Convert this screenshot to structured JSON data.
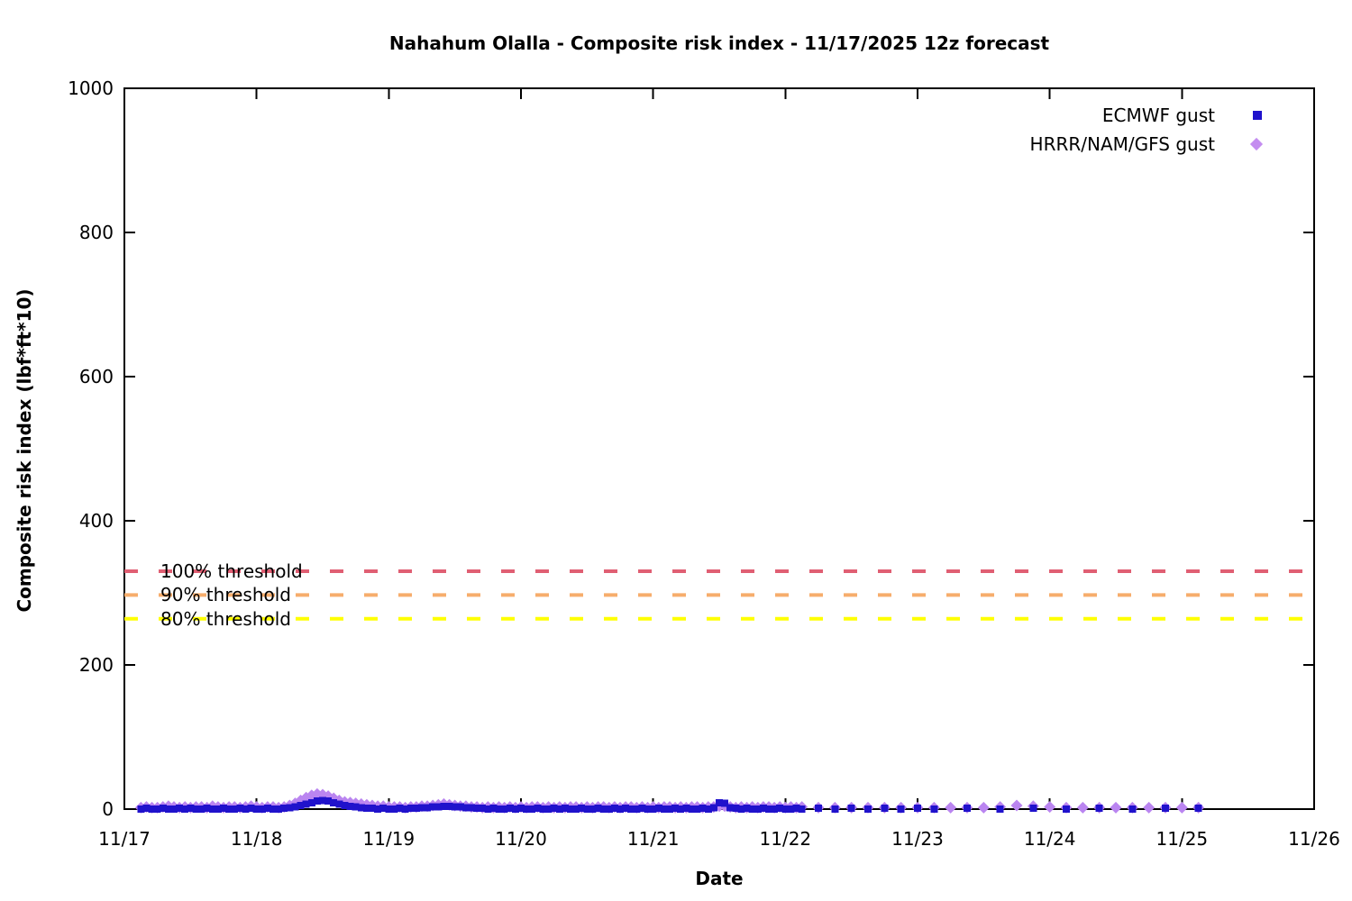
{
  "title": "Nahahum Olalla - Composite risk index - 11/17/2025 12z forecast",
  "legend": {
    "entries": [
      {
        "label": "ECMWF gust",
        "marker": "square",
        "color": "#2012cc"
      },
      {
        "label": "HRRR/NAM/GFS gust",
        "marker": "diamond",
        "color": "#c48df0"
      }
    ]
  },
  "chart_data": {
    "type": "scatter",
    "title": "Nahahum Olalla - Composite risk index - 11/17/2025 12z forecast",
    "xlabel": "Date",
    "ylabel": "Composite risk index (lbf*ft*10)",
    "x_tick_labels": [
      "11/17",
      "11/18",
      "11/19",
      "11/20",
      "11/21",
      "11/22",
      "11/23",
      "11/24",
      "11/25",
      "11/26"
    ],
    "x_span_days": 9,
    "ylim": [
      0,
      1000
    ],
    "y_ticks": [
      0,
      200,
      400,
      600,
      800,
      1000
    ],
    "grid": "off",
    "legend_position": "top-right-inside",
    "axis_color": "#000000",
    "thresholds": [
      {
        "label": "100% threshold",
        "value": 330,
        "color": "#e05f73"
      },
      {
        "label": "90% threshold",
        "value": 297,
        "color": "#f6ad6c"
      },
      {
        "label": "80% threshold",
        "value": 264,
        "color": "#ffff00"
      }
    ],
    "series": [
      {
        "name": "HRRR/NAM/GFS gust",
        "marker": "diamond",
        "color": "#ba85f0",
        "x_unit": "hours_after_11/17_00z",
        "segments": [
          {
            "start_hour": 3,
            "step_hours": 1,
            "values": [
              2,
              3,
              2,
              2,
              3,
              4,
              3,
              2,
              3,
              2,
              3,
              3,
              2,
              4,
              3,
              2,
              3,
              3,
              2,
              3,
              4,
              3,
              2,
              3,
              3,
              2,
              3,
              5,
              8,
              12,
              16,
              19,
              21,
              20,
              18,
              15,
              12,
              10,
              9,
              8,
              7,
              6,
              5,
              4,
              4,
              3,
              3,
              3,
              2,
              3,
              3,
              4,
              4,
              5,
              6,
              7,
              6,
              5,
              4,
              4,
              3,
              3,
              2,
              3,
              2,
              3,
              2,
              3,
              2,
              3,
              2,
              3,
              3,
              2,
              3,
              2,
              3,
              2,
              3,
              3,
              2,
              3,
              2,
              3,
              3,
              2,
              3,
              2,
              3,
              3,
              2,
              3,
              2,
              3,
              2,
              3,
              3,
              2,
              3,
              2,
              3,
              3,
              2,
              3,
              3,
              4,
              4,
              3,
              2,
              3,
              2,
              3,
              2,
              3,
              3,
              2,
              3,
              2,
              3,
              2,
              3
            ]
          },
          {
            "start_hour": 126,
            "step_hours": 3,
            "values": [
              2,
              2,
              2,
              2,
              2,
              2,
              2,
              2,
              2,
              2,
              2,
              3,
              5,
              4,
              3,
              2,
              2,
              2,
              2,
              2,
              2,
              2,
              2,
              2
            ]
          }
        ]
      },
      {
        "name": "ECMWF gust",
        "marker": "square",
        "color": "#2012cc",
        "x_unit": "hours_after_11/17_00z",
        "segments": [
          {
            "start_hour": 3,
            "step_hours": 1,
            "values": [
              0,
              1,
              0,
              0,
              1,
              0,
              0,
              1,
              0,
              1,
              0,
              0,
              1,
              0,
              0,
              1,
              0,
              0,
              1,
              0,
              1,
              0,
              0,
              1,
              0,
              0,
              1,
              2,
              3,
              5,
              7,
              9,
              11,
              12,
              11,
              9,
              7,
              5,
              4,
              3,
              2,
              1,
              1,
              0,
              1,
              0,
              0,
              1,
              0,
              1,
              1,
              2,
              2,
              3,
              3,
              4,
              4,
              3,
              3,
              2,
              2,
              1,
              1,
              0,
              1,
              0,
              0,
              1,
              0,
              1,
              0,
              0,
              1,
              0,
              0,
              1,
              0,
              1,
              0,
              0,
              1,
              0,
              0,
              1,
              0,
              0,
              1,
              0,
              1,
              0,
              0,
              1,
              0,
              0,
              1,
              0,
              0,
              1,
              0,
              1,
              0,
              0,
              1,
              0,
              2,
              9,
              8,
              2,
              1,
              0,
              1,
              0,
              0,
              1,
              0,
              0,
              1,
              0,
              0,
              1,
              0
            ]
          },
          {
            "start_hour": 126,
            "step_hours": 3,
            "values": [
              1,
              0,
              1,
              0,
              1,
              0,
              1,
              0
            ]
          },
          {
            "start_hour": 153,
            "step_hours": 6,
            "values": [
              1,
              0,
              1,
              0,
              1,
              0,
              1,
              1
            ]
          }
        ]
      }
    ]
  }
}
